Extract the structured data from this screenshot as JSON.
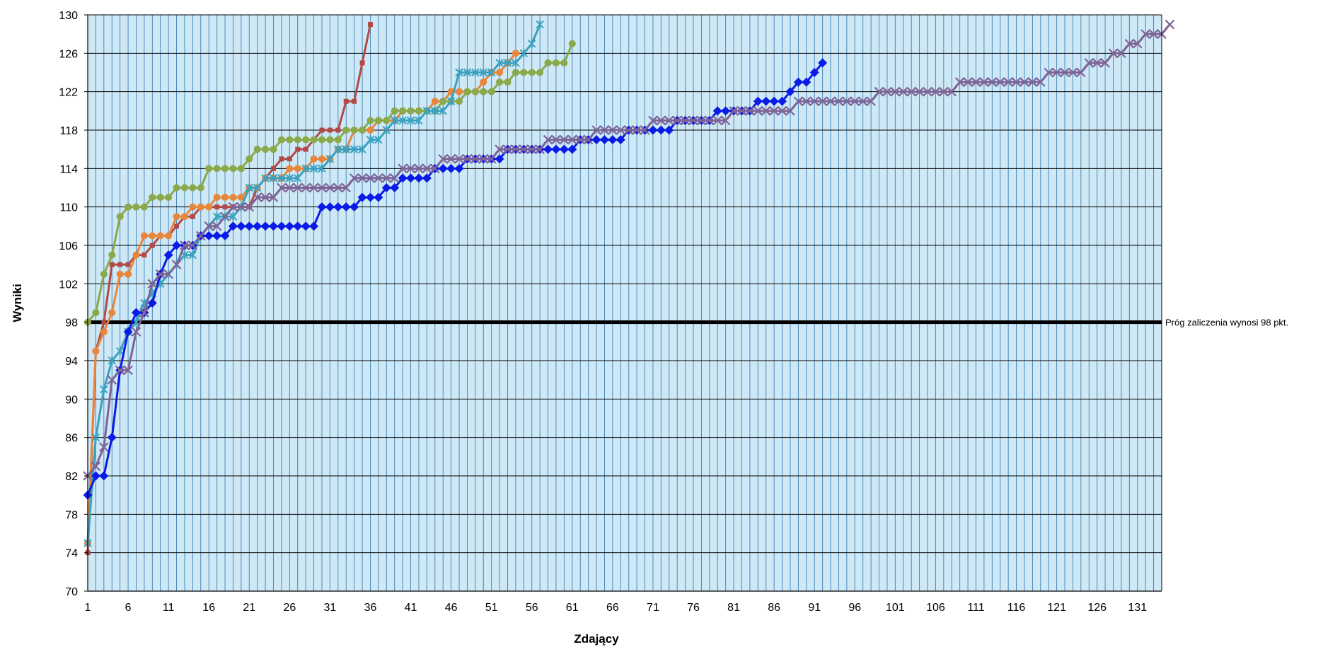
{
  "chart_data": {
    "type": "line",
    "title": "",
    "xlabel": "Zdający",
    "ylabel": "Wyniki",
    "xlim": [
      1,
      134
    ],
    "ylim": [
      70,
      130
    ],
    "y_ticks": [
      70,
      74,
      78,
      82,
      86,
      90,
      94,
      98,
      102,
      106,
      110,
      114,
      118,
      122,
      126,
      130
    ],
    "x_ticks": [
      1,
      6,
      11,
      16,
      21,
      26,
      31,
      36,
      41,
      46,
      51,
      56,
      61,
      66,
      71,
      76,
      81,
      86,
      91,
      96,
      101,
      106,
      111,
      116,
      121,
      126,
      131
    ],
    "grid": {
      "horizontal": true,
      "vertical": true,
      "background": "#cfe8f5",
      "vertical_line_color": "#3b7fb5"
    },
    "legend": "none",
    "threshold": {
      "value": 98,
      "label": "Próg zaliczenia wynosi 98 pkt.",
      "color": "#000000"
    },
    "series": [
      {
        "color": "#b04a47",
        "marker": "square",
        "values": [
          74,
          95,
          98,
          104,
          104,
          104,
          105,
          105,
          106,
          107,
          107,
          108,
          109,
          109,
          110,
          110,
          110,
          110,
          110,
          110,
          110,
          112,
          113,
          114,
          115,
          115,
          116,
          116,
          117,
          118,
          118,
          118,
          121,
          121,
          125,
          129
        ]
      },
      {
        "color": "#e8863c",
        "marker": "circle",
        "values": [
          75,
          95,
          97,
          99,
          103,
          103,
          105,
          107,
          107,
          107,
          107,
          109,
          109,
          110,
          110,
          110,
          111,
          111,
          111,
          111,
          112,
          112,
          113,
          113,
          113,
          114,
          114,
          114,
          115,
          115,
          115,
          116,
          116,
          118,
          118,
          118,
          119,
          119,
          119,
          120,
          120,
          120,
          120,
          121,
          121,
          122,
          122,
          122,
          122,
          123,
          124,
          124,
          125,
          126
        ]
      },
      {
        "color": "#8aa94a",
        "marker": "circle",
        "values": [
          98,
          99,
          103,
          105,
          109,
          110,
          110,
          110,
          111,
          111,
          111,
          112,
          112,
          112,
          112,
          114,
          114,
          114,
          114,
          114,
          115,
          116,
          116,
          116,
          117,
          117,
          117,
          117,
          117,
          117,
          117,
          117,
          118,
          118,
          118,
          119,
          119,
          119,
          120,
          120,
          120,
          120,
          120,
          120,
          121,
          121,
          121,
          122,
          122,
          122,
          122,
          123,
          123,
          124,
          124,
          124,
          124,
          125,
          125,
          125,
          127
        ]
      },
      {
        "color": "#3aa2c0",
        "marker": "star",
        "values": [
          75,
          86,
          91,
          94,
          95,
          97,
          98,
          100,
          101,
          102,
          103,
          104,
          105,
          105,
          107,
          108,
          109,
          109,
          109,
          110,
          112,
          112,
          113,
          113,
          113,
          113,
          113,
          114,
          114,
          114,
          115,
          116,
          116,
          116,
          116,
          117,
          117,
          118,
          119,
          119,
          119,
          119,
          120,
          120,
          120,
          121,
          124,
          124,
          124,
          124,
          124,
          125,
          125,
          125,
          126,
          127,
          129
        ]
      },
      {
        "color": "#0a1be6",
        "marker": "diamond",
        "values": [
          80,
          82,
          82,
          86,
          93,
          97,
          99,
          99,
          100,
          103,
          105,
          106,
          106,
          106,
          107,
          107,
          107,
          107,
          108,
          108,
          108,
          108,
          108,
          108,
          108,
          108,
          108,
          108,
          108,
          110,
          110,
          110,
          110,
          110,
          111,
          111,
          111,
          112,
          112,
          113,
          113,
          113,
          113,
          114,
          114,
          114,
          114,
          115,
          115,
          115,
          115,
          115,
          116,
          116,
          116,
          116,
          116,
          116,
          116,
          116,
          116,
          117,
          117,
          117,
          117,
          117,
          117,
          118,
          118,
          118,
          118,
          118,
          118,
          119,
          119,
          119,
          119,
          119,
          120,
          120,
          120,
          120,
          120,
          121,
          121,
          121,
          121,
          122,
          123,
          123,
          124,
          125
        ]
      },
      {
        "color": "#7e6496",
        "marker": "x",
        "values": [
          82,
          83,
          85,
          92,
          93,
          93,
          97,
          99,
          102,
          103,
          103,
          104,
          106,
          106,
          107,
          108,
          108,
          109,
          110,
          110,
          110,
          111,
          111,
          111,
          112,
          112,
          112,
          112,
          112,
          112,
          112,
          112,
          112,
          113,
          113,
          113,
          113,
          113,
          113,
          114,
          114,
          114,
          114,
          114,
          115,
          115,
          115,
          115,
          115,
          115,
          115,
          116,
          116,
          116,
          116,
          116,
          116,
          117,
          117,
          117,
          117,
          117,
          117,
          118,
          118,
          118,
          118,
          118,
          118,
          118,
          119,
          119,
          119,
          119,
          119,
          119,
          119,
          119,
          119,
          119,
          120,
          120,
          120,
          120,
          120,
          120,
          120,
          120,
          121,
          121,
          121,
          121,
          121,
          121,
          121,
          121,
          121,
          121,
          122,
          122,
          122,
          122,
          122,
          122,
          122,
          122,
          122,
          122,
          123,
          123,
          123,
          123,
          123,
          123,
          123,
          123,
          123,
          123,
          123,
          124,
          124,
          124,
          124,
          124,
          125,
          125,
          125,
          126,
          126,
          127,
          127,
          128,
          128,
          128,
          129
        ]
      }
    ]
  }
}
